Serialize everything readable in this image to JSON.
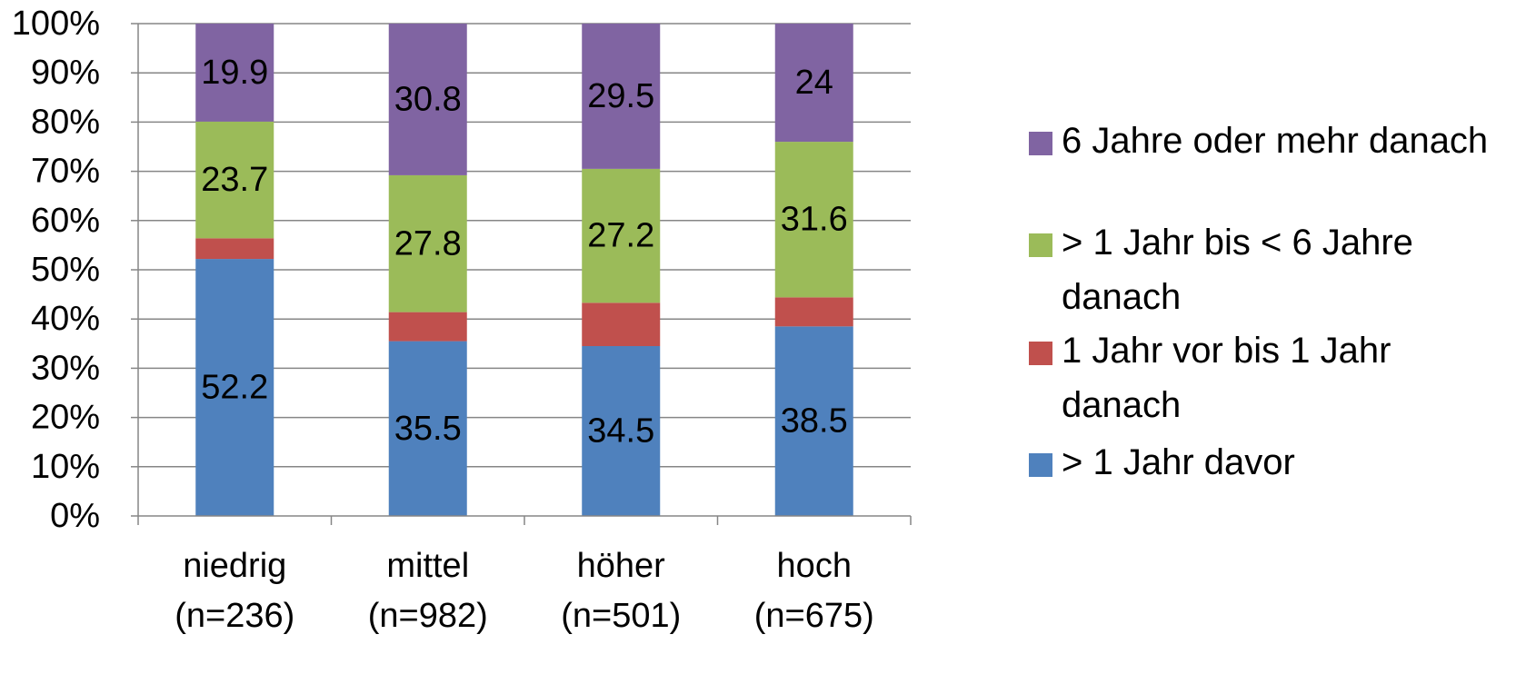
{
  "chart_data": {
    "type": "bar",
    "stacked": true,
    "categories": [
      [
        "niedrig",
        "(n=236)"
      ],
      [
        "mittel",
        "(n=982)"
      ],
      [
        "höher",
        "(n=501)"
      ],
      [
        "hoch",
        "(n=675)"
      ]
    ],
    "series": [
      {
        "name": "> 1 Jahr davor",
        "color": "#4f81bd",
        "values": [
          52.2,
          35.5,
          34.5,
          38.5
        ],
        "labels": [
          "52.2",
          "35.5",
          "34.5",
          "38.5"
        ]
      },
      {
        "name": "1 Jahr vor bis 1 Jahr danach",
        "color": "#c0504d",
        "values": [
          4.2,
          5.9,
          8.8,
          5.9
        ],
        "labels": [
          "",
          "",
          "",
          ""
        ]
      },
      {
        "name": "> 1 Jahr bis < 6 Jahre danach",
        "color": "#9bbb59",
        "values": [
          23.7,
          27.8,
          27.2,
          31.6
        ],
        "labels": [
          "23.7",
          "27.8",
          "27.2",
          "31.6"
        ]
      },
      {
        "name": "6 Jahre oder mehr danach",
        "color": "#8064a2",
        "values": [
          19.9,
          30.8,
          29.5,
          24.0
        ],
        "labels": [
          "19.9",
          "30.8",
          "29.5",
          "24"
        ]
      }
    ],
    "yticks": [
      "0%",
      "10%",
      "20%",
      "30%",
      "40%",
      "50%",
      "60%",
      "70%",
      "80%",
      "90%",
      "100%"
    ],
    "ylim": [
      0,
      100
    ],
    "grid": true,
    "legend_position": "right",
    "legend_order": [
      "6 Jahre oder mehr danach",
      "> 1 Jahr bis < 6 Jahre danach",
      "1 Jahr vor bis 1 Jahr danach",
      "> 1 Jahr davor"
    ]
  }
}
